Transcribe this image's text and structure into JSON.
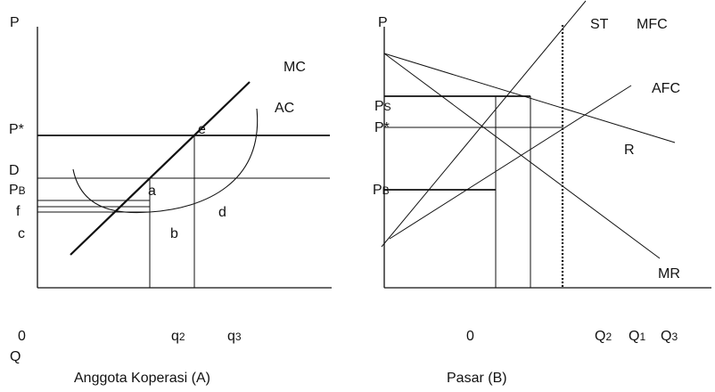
{
  "panel_a": {
    "y_axis_label": "P",
    "curves": {
      "mc": "MC",
      "ac": "AC"
    },
    "price_labels": {
      "p_star": "P*",
      "d": "D",
      "p_b_main": "P",
      "p_b_sub": "B",
      "f": "f",
      "c": "c"
    },
    "points": {
      "e": "e",
      "a": "a",
      "b": "b",
      "d": "d"
    },
    "x_labels": {
      "origin": "0",
      "q2_main": "q",
      "q2_sub": "2",
      "q3_main": "q",
      "q3_sub": "3",
      "axis": "Q"
    },
    "caption": "Anggota Koperasi (A)"
  },
  "panel_b": {
    "y_axis_label": "P",
    "curves": {
      "st": "ST",
      "mfc": "MFC",
      "afc": "AFC",
      "r": "R",
      "mr": "MR"
    },
    "price_labels": {
      "p_s_main": "P",
      "p_s_sub": "S",
      "p_star": "P*",
      "p_b_main": "P",
      "p_b_sub": "B"
    },
    "x_labels": {
      "origin": "0",
      "q2_main": "Q",
      "q2_sub": "2",
      "q1_main": "Q",
      "q1_sub": "1",
      "q3_main": "Q",
      "q3_sub": "3"
    },
    "caption": "Pasar (B)"
  }
}
